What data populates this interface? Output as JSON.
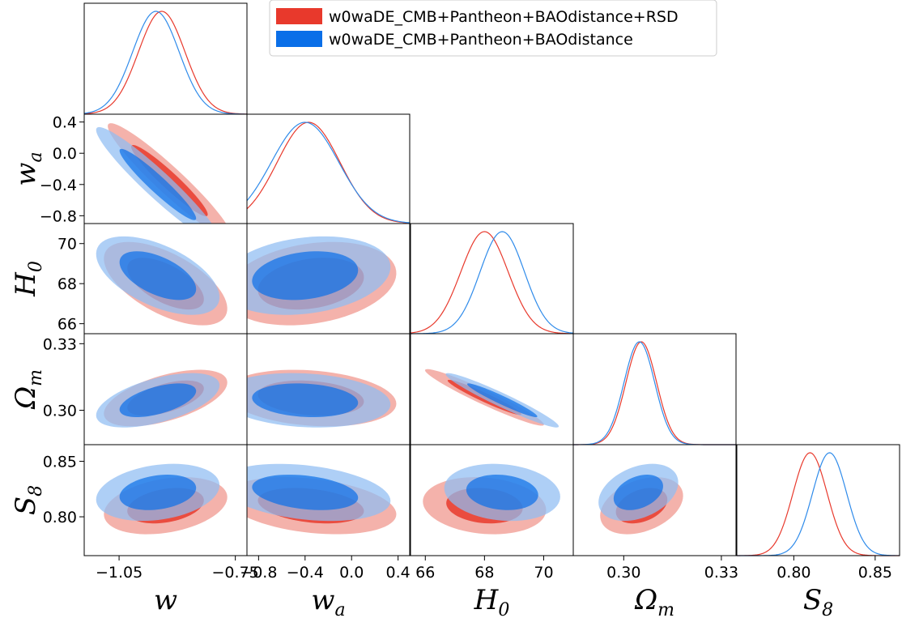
{
  "chart_data": {
    "type": "corner",
    "title": "",
    "colors": {
      "red": "#e8392c",
      "blue": "#0a6fe8"
    },
    "legend": {
      "placement": "top-right",
      "entries": [
        {
          "label": "w0waDE_CMB+Pantheon+BAOdistance+RSD",
          "color": "#e8392c"
        },
        {
          "label": "w0waDE_CMB+Pantheon+BAOdistance",
          "color": "#0a6fe8"
        }
      ]
    },
    "parameters": [
      {
        "key": "w",
        "symbol": "w",
        "sub": "",
        "range": [
          -1.14,
          -0.72
        ],
        "ticks": [
          -1.05,
          -0.75
        ],
        "tick_labels": [
          "−1.05",
          "−0.75"
        ]
      },
      {
        "key": "wa",
        "symbol": "w",
        "sub": "a",
        "range": [
          -0.9,
          0.5
        ],
        "ticks": [
          -0.8,
          -0.4,
          0.0,
          0.4
        ],
        "tick_labels": [
          "−0.8",
          "−0.4",
          "0.0",
          "0.4"
        ]
      },
      {
        "key": "H0",
        "symbol": "H",
        "sub": "0",
        "range": [
          65.5,
          71.0
        ],
        "ticks": [
          66,
          68,
          70
        ],
        "tick_labels": [
          "66",
          "68",
          "70"
        ]
      },
      {
        "key": "Om",
        "symbol": "Ω",
        "sub": "m",
        "range": [
          0.2845,
          0.3345
        ],
        "ticks": [
          0.3,
          0.33
        ],
        "tick_labels": [
          "0.30",
          "0.33"
        ]
      },
      {
        "key": "S8",
        "symbol": "S",
        "sub": "8",
        "range": [
          0.765,
          0.865
        ],
        "ticks": [
          0.8,
          0.85
        ],
        "tick_labels": [
          "0.80",
          "0.85"
        ]
      }
    ],
    "diagonal": {
      "w": {
        "red": {
          "mean": -0.94,
          "sigma": 0.06
        },
        "blue": {
          "mean": -0.955,
          "sigma": 0.06
        }
      },
      "wa": {
        "red": {
          "mean": -0.37,
          "sigma": 0.27
        },
        "blue": {
          "mean": -0.4,
          "sigma": 0.29
        }
      },
      "H0": {
        "red": {
          "mean": 68.0,
          "sigma": 0.8
        },
        "blue": {
          "mean": 68.6,
          "sigma": 0.75
        }
      },
      "Om": {
        "red": {
          "mean": 0.3054,
          "sigma": 0.0047
        },
        "blue": {
          "mean": 0.3048,
          "sigma": 0.0047
        }
      },
      "S8": {
        "red": {
          "mean": 0.81,
          "sigma": 0.0105
        },
        "blue": {
          "mean": 0.822,
          "sigma": 0.0105
        }
      }
    },
    "contours": [
      {
        "x": "w",
        "y": "wa",
        "red": {
          "mx": -0.92,
          "my": -0.35,
          "sx": 0.065,
          "sy": 0.3,
          "rho": -0.95
        },
        "blue": {
          "mx": -0.95,
          "my": -0.4,
          "sx": 0.065,
          "sy": 0.3,
          "rho": -0.95
        }
      },
      {
        "x": "w",
        "y": "H0",
        "red": {
          "mx": -0.93,
          "my": 68.0,
          "sx": 0.065,
          "sy": 0.85,
          "rho": -0.6
        },
        "blue": {
          "mx": -0.95,
          "my": 68.4,
          "sx": 0.065,
          "sy": 0.8,
          "rho": -0.55
        }
      },
      {
        "x": "wa",
        "y": "H0",
        "red": {
          "mx": -0.35,
          "my": 68.0,
          "sx": 0.3,
          "sy": 0.85,
          "rho": 0.25
        },
        "blue": {
          "mx": -0.4,
          "my": 68.4,
          "sx": 0.3,
          "sy": 0.8,
          "rho": 0.22
        }
      },
      {
        "x": "w",
        "y": "Om",
        "red": {
          "mx": -0.93,
          "my": 0.3055,
          "sx": 0.065,
          "sy": 0.0052,
          "rho": 0.55
        },
        "blue": {
          "mx": -0.95,
          "my": 0.3045,
          "sx": 0.065,
          "sy": 0.005,
          "rho": 0.55
        }
      },
      {
        "x": "wa",
        "y": "Om",
        "red": {
          "mx": -0.35,
          "my": 0.3055,
          "sx": 0.3,
          "sy": 0.0052,
          "rho": -0.2
        },
        "blue": {
          "mx": -0.4,
          "my": 0.3045,
          "sx": 0.3,
          "sy": 0.005,
          "rho": -0.15
        }
      },
      {
        "x": "H0",
        "y": "Om",
        "red": {
          "mx": 68.0,
          "my": 0.3058,
          "sx": 0.82,
          "sy": 0.0052,
          "rho": -0.96
        },
        "blue": {
          "mx": 68.6,
          "my": 0.3045,
          "sx": 0.78,
          "sy": 0.005,
          "rho": -0.96
        }
      },
      {
        "x": "w",
        "y": "S8",
        "red": {
          "mx": -0.93,
          "my": 0.81,
          "sx": 0.065,
          "sy": 0.0105,
          "rho": 0.3
        },
        "blue": {
          "mx": -0.95,
          "my": 0.822,
          "sx": 0.065,
          "sy": 0.0105,
          "rho": 0.25
        }
      },
      {
        "x": "wa",
        "y": "S8",
        "red": {
          "mx": -0.35,
          "my": 0.81,
          "sx": 0.3,
          "sy": 0.0105,
          "rho": -0.3
        },
        "blue": {
          "mx": -0.4,
          "my": 0.822,
          "sx": 0.3,
          "sy": 0.0105,
          "rho": -0.3
        }
      },
      {
        "x": "H0",
        "y": "S8",
        "red": {
          "mx": 68.0,
          "my": 0.81,
          "sx": 0.85,
          "sy": 0.0105,
          "rho": -0.15
        },
        "blue": {
          "mx": 68.6,
          "my": 0.822,
          "sx": 0.8,
          "sy": 0.0105,
          "rho": -0.15
        }
      },
      {
        "x": "Om",
        "y": "S8",
        "red": {
          "mx": 0.3055,
          "my": 0.81,
          "sx": 0.0052,
          "sy": 0.0105,
          "rho": 0.35
        },
        "blue": {
          "mx": 0.3045,
          "my": 0.822,
          "sx": 0.005,
          "sy": 0.0105,
          "rho": 0.35
        }
      }
    ]
  }
}
